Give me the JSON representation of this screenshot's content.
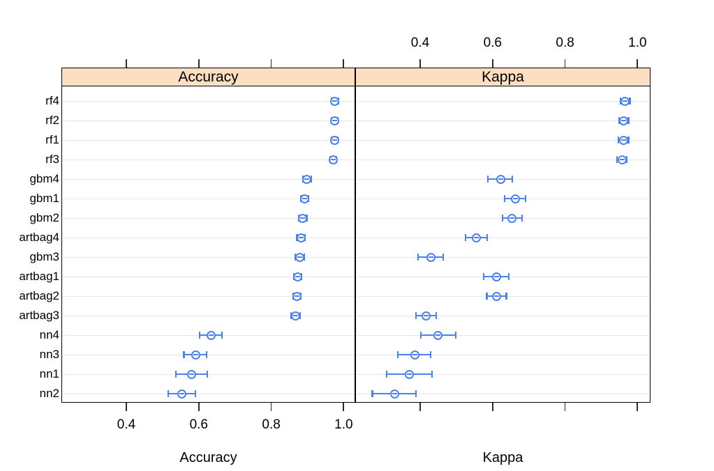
{
  "colors": {
    "point_blue": "#4a81ee",
    "strip_bg": "#fbdfc0",
    "grid_gray": "#e7e7e7",
    "frame_black": "#000000",
    "text_black": "#000000"
  },
  "chart_data": {
    "type": "scatter",
    "subtype": "dotplot-with-error-bars",
    "title": "",
    "categories": [
      "rf4",
      "rf2",
      "rf1",
      "rf3",
      "gbm4",
      "gbm1",
      "gbm2",
      "artbag4",
      "gbm3",
      "artbag1",
      "artbag2",
      "artbag3",
      "nn4",
      "nn3",
      "nn1",
      "nn2"
    ],
    "x_ticks": [
      0.4,
      0.6,
      0.8,
      1.0
    ],
    "x_tick_labels": [
      "0.4",
      "0.6",
      "0.8",
      "1.0"
    ],
    "xlim": [
      0.22,
      1.03
    ],
    "grid": "horizontal-only",
    "legend": "none",
    "panels": [
      {
        "strip_label": "Accuracy",
        "axis_title": "Accuracy",
        "top_tick_labels_shown": false,
        "bottom_tick_labels_shown": true,
        "points": [
          {
            "model": "rf4",
            "value": 0.976,
            "lo": 0.967,
            "hi": 0.985
          },
          {
            "model": "rf2",
            "value": 0.975,
            "lo": 0.966,
            "hi": 0.984
          },
          {
            "model": "rf1",
            "value": 0.975,
            "lo": 0.967,
            "hi": 0.983
          },
          {
            "model": "rf3",
            "value": 0.972,
            "lo": 0.962,
            "hi": 0.98
          },
          {
            "model": "gbm4",
            "value": 0.899,
            "lo": 0.888,
            "hi": 0.911
          },
          {
            "model": "gbm1",
            "value": 0.892,
            "lo": 0.881,
            "hi": 0.903
          },
          {
            "model": "gbm2",
            "value": 0.887,
            "lo": 0.876,
            "hi": 0.898
          },
          {
            "model": "artbag4",
            "value": 0.882,
            "lo": 0.871,
            "hi": 0.893
          },
          {
            "model": "gbm3",
            "value": 0.879,
            "lo": 0.867,
            "hi": 0.891
          },
          {
            "model": "artbag1",
            "value": 0.873,
            "lo": 0.862,
            "hi": 0.884
          },
          {
            "model": "artbag2",
            "value": 0.871,
            "lo": 0.86,
            "hi": 0.882
          },
          {
            "model": "artbag3",
            "value": 0.867,
            "lo": 0.855,
            "hi": 0.879
          },
          {
            "model": "nn4",
            "value": 0.634,
            "lo": 0.602,
            "hi": 0.664
          },
          {
            "model": "nn3",
            "value": 0.591,
            "lo": 0.559,
            "hi": 0.621
          },
          {
            "model": "nn1",
            "value": 0.58,
            "lo": 0.537,
            "hi": 0.624
          },
          {
            "model": "nn2",
            "value": 0.553,
            "lo": 0.516,
            "hi": 0.591
          }
        ]
      },
      {
        "strip_label": "Kappa",
        "axis_title": "Kappa",
        "top_tick_labels_shown": true,
        "bottom_tick_labels_shown": false,
        "points": [
          {
            "model": "rf4",
            "value": 0.966,
            "lo": 0.953,
            "hi": 0.979
          },
          {
            "model": "rf2",
            "value": 0.962,
            "lo": 0.949,
            "hi": 0.975
          },
          {
            "model": "rf1",
            "value": 0.962,
            "lo": 0.948,
            "hi": 0.975
          },
          {
            "model": "rf3",
            "value": 0.957,
            "lo": 0.943,
            "hi": 0.971
          },
          {
            "model": "gbm4",
            "value": 0.622,
            "lo": 0.587,
            "hi": 0.655
          },
          {
            "model": "gbm1",
            "value": 0.663,
            "lo": 0.633,
            "hi": 0.691
          },
          {
            "model": "gbm2",
            "value": 0.653,
            "lo": 0.627,
            "hi": 0.681
          },
          {
            "model": "artbag4",
            "value": 0.556,
            "lo": 0.525,
            "hi": 0.585
          },
          {
            "model": "gbm3",
            "value": 0.429,
            "lo": 0.395,
            "hi": 0.463
          },
          {
            "model": "artbag1",
            "value": 0.611,
            "lo": 0.575,
            "hi": 0.645
          },
          {
            "model": "artbag2",
            "value": 0.611,
            "lo": 0.584,
            "hi": 0.638
          },
          {
            "model": "artbag3",
            "value": 0.416,
            "lo": 0.389,
            "hi": 0.444
          },
          {
            "model": "nn4",
            "value": 0.45,
            "lo": 0.402,
            "hi": 0.498
          },
          {
            "model": "nn3",
            "value": 0.386,
            "lo": 0.339,
            "hi": 0.429
          },
          {
            "model": "nn1",
            "value": 0.37,
            "lo": 0.308,
            "hi": 0.432
          },
          {
            "model": "nn2",
            "value": 0.329,
            "lo": 0.268,
            "hi": 0.389
          }
        ]
      }
    ]
  }
}
